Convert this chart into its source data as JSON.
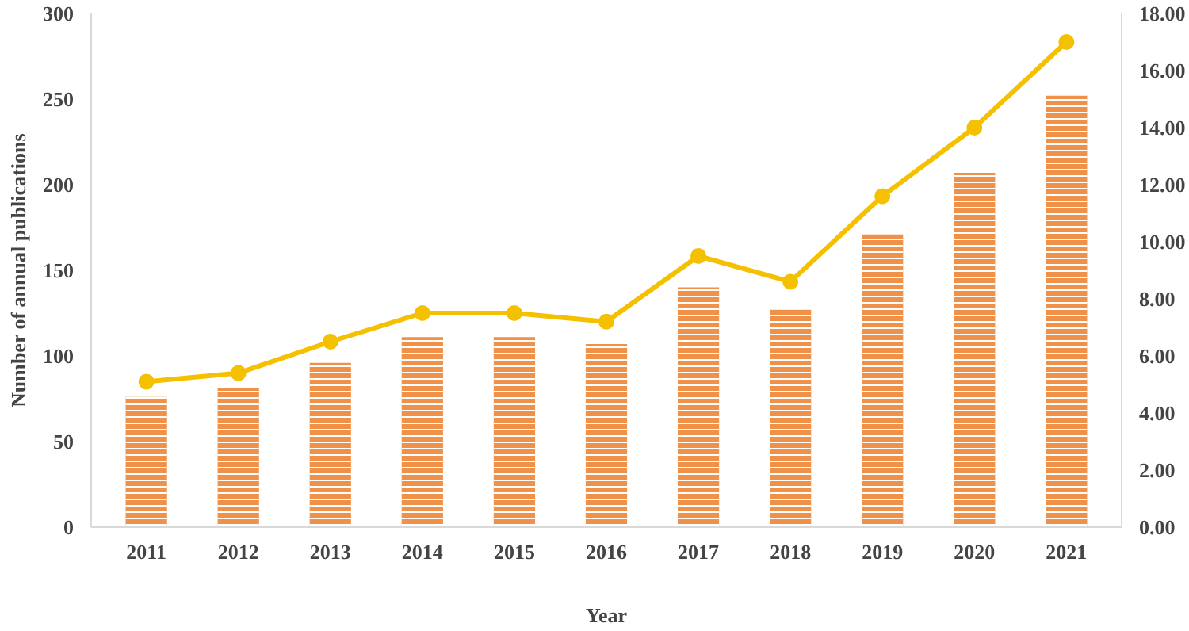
{
  "chart_data": {
    "type": "bar",
    "xlabel": "Year",
    "ylabel": "Number of annual publications",
    "categories": [
      "2011",
      "2012",
      "2013",
      "2014",
      "2015",
      "2016",
      "2017",
      "2018",
      "2019",
      "2020",
      "2021"
    ],
    "series": [
      {
        "color": "#f0914a",
        "values": [
          76,
          81,
          96,
          111,
          111,
          107,
          140,
          127,
          171,
          207,
          252
        ]
      },
      {
        "type": "line",
        "axis": "y2",
        "color": "#f5c000",
        "values": [
          5.1,
          5.4,
          6.5,
          7.5,
          7.5,
          7.2,
          9.5,
          8.6,
          11.6,
          14.0,
          17.0
        ]
      }
    ],
    "ylim": [
      0,
      300
    ],
    "yticks": [
      0,
      50,
      100,
      150,
      200,
      250,
      300
    ],
    "y2lim": [
      0,
      18
    ],
    "y2ticks": [
      {
        "value": 0,
        "label": "0.00"
      },
      {
        "value": 2,
        "label": "2.00"
      },
      {
        "value": 4,
        "label": "4.00"
      },
      {
        "value": 6,
        "label": "6.00"
      },
      {
        "value": 8,
        "label": "8.00"
      },
      {
        "value": 10,
        "label": "10.00"
      },
      {
        "value": 12,
        "label": "12.00"
      },
      {
        "value": 14,
        "label": "14.00"
      },
      {
        "value": 16,
        "label": "16.00"
      },
      {
        "value": 18,
        "label": "18.00"
      }
    ],
    "grid": false,
    "marker": "circle",
    "line_style": "solid"
  }
}
